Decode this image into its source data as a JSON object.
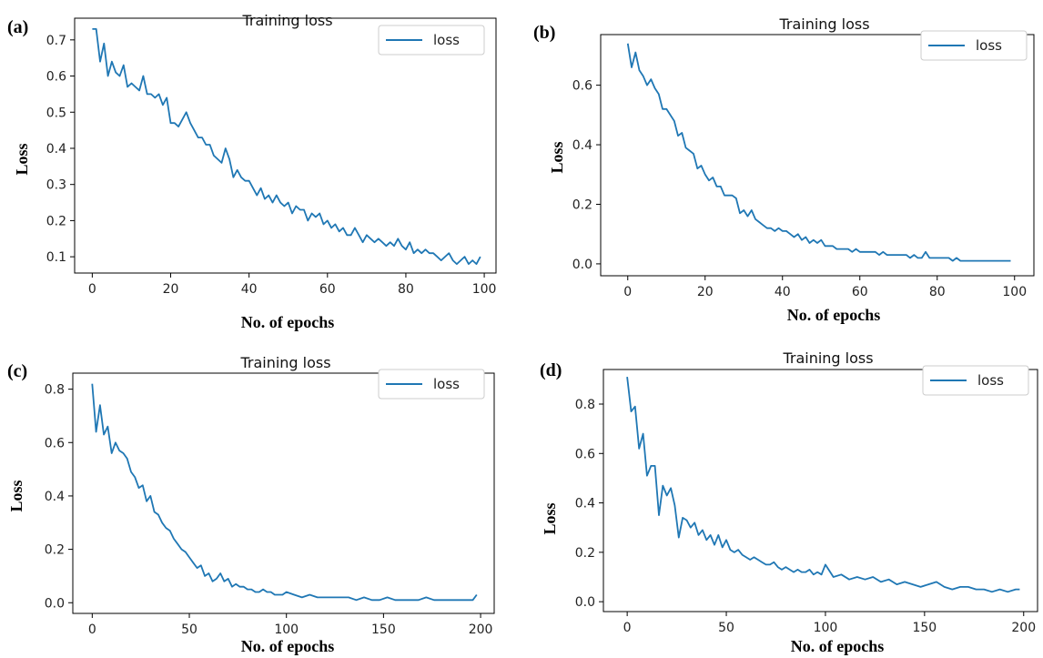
{
  "chart_data": [
    {
      "panel": "(a)",
      "type": "line",
      "title": "Training loss",
      "xlabel": "No. of epochs",
      "ylabel": "Loss",
      "xlim": [
        -4.5,
        103
      ],
      "ylim": [
        0.055,
        0.76
      ],
      "xticks": [
        0,
        20,
        40,
        60,
        80,
        100
      ],
      "yticks": [
        0.1,
        0.2,
        0.3,
        0.4,
        0.5,
        0.6,
        0.7
      ],
      "ytick_labels": [
        "0.1",
        "0.2",
        "0.3",
        "0.4",
        "0.5",
        "0.6",
        "0.7"
      ],
      "legend": "top-right",
      "series": [
        {
          "name": "loss",
          "color": "#1f77b4",
          "x": [
            0,
            1,
            2,
            3,
            4,
            5,
            6,
            7,
            8,
            9,
            10,
            11,
            12,
            13,
            14,
            15,
            16,
            17,
            18,
            19,
            20,
            21,
            22,
            23,
            24,
            25,
            26,
            27,
            28,
            29,
            30,
            31,
            32,
            33,
            34,
            35,
            36,
            37,
            38,
            39,
            40,
            41,
            42,
            43,
            44,
            45,
            46,
            47,
            48,
            49,
            50,
            51,
            52,
            53,
            54,
            55,
            56,
            57,
            58,
            59,
            60,
            61,
            62,
            63,
            64,
            65,
            66,
            67,
            68,
            69,
            70,
            71,
            72,
            73,
            74,
            75,
            76,
            77,
            78,
            79,
            80,
            81,
            82,
            83,
            84,
            85,
            86,
            87,
            88,
            89,
            90,
            91,
            92,
            93,
            94,
            95,
            96,
            97,
            98,
            99
          ],
          "y": [
            0.73,
            0.73,
            0.64,
            0.69,
            0.6,
            0.64,
            0.61,
            0.6,
            0.63,
            0.57,
            0.58,
            0.57,
            0.56,
            0.6,
            0.55,
            0.55,
            0.54,
            0.55,
            0.52,
            0.54,
            0.47,
            0.47,
            0.46,
            0.48,
            0.5,
            0.47,
            0.45,
            0.43,
            0.43,
            0.41,
            0.41,
            0.38,
            0.37,
            0.36,
            0.4,
            0.37,
            0.32,
            0.34,
            0.32,
            0.31,
            0.31,
            0.29,
            0.27,
            0.29,
            0.26,
            0.27,
            0.25,
            0.27,
            0.25,
            0.24,
            0.25,
            0.22,
            0.24,
            0.23,
            0.23,
            0.2,
            0.22,
            0.21,
            0.22,
            0.19,
            0.2,
            0.18,
            0.19,
            0.17,
            0.18,
            0.16,
            0.16,
            0.18,
            0.16,
            0.14,
            0.16,
            0.15,
            0.14,
            0.15,
            0.14,
            0.13,
            0.14,
            0.13,
            0.15,
            0.13,
            0.12,
            0.14,
            0.11,
            0.12,
            0.11,
            0.12,
            0.11,
            0.11,
            0.1,
            0.09,
            0.1,
            0.11,
            0.09,
            0.08,
            0.09,
            0.1,
            0.08,
            0.09,
            0.08,
            0.1
          ]
        }
      ]
    },
    {
      "panel": "(b)",
      "type": "line",
      "title": "Training loss",
      "xlabel": "No. of epochs",
      "ylabel": "Loss",
      "xlim": [
        -7,
        105
      ],
      "ylim": [
        -0.04,
        0.77
      ],
      "xticks": [
        0,
        20,
        40,
        60,
        80,
        100
      ],
      "yticks": [
        0.0,
        0.2,
        0.4,
        0.6
      ],
      "ytick_labels": [
        "0.0",
        "0.2",
        "0.4",
        "0.6"
      ],
      "legend": "top-right",
      "series": [
        {
          "name": "loss",
          "color": "#1f77b4",
          "x": [
            0,
            1,
            2,
            3,
            4,
            5,
            6,
            7,
            8,
            9,
            10,
            11,
            12,
            13,
            14,
            15,
            16,
            17,
            18,
            19,
            20,
            21,
            22,
            23,
            24,
            25,
            26,
            27,
            28,
            29,
            30,
            31,
            32,
            33,
            34,
            35,
            36,
            37,
            38,
            39,
            40,
            41,
            42,
            43,
            44,
            45,
            46,
            47,
            48,
            49,
            50,
            51,
            52,
            53,
            54,
            55,
            56,
            57,
            58,
            59,
            60,
            61,
            62,
            63,
            64,
            65,
            66,
            67,
            68,
            69,
            70,
            71,
            72,
            73,
            74,
            75,
            76,
            77,
            78,
            79,
            80,
            81,
            82,
            83,
            84,
            85,
            86,
            87,
            88,
            89,
            90,
            91,
            92,
            93,
            94,
            95,
            96,
            97,
            98,
            99
          ],
          "y": [
            0.74,
            0.66,
            0.71,
            0.65,
            0.63,
            0.6,
            0.62,
            0.59,
            0.57,
            0.52,
            0.52,
            0.5,
            0.48,
            0.43,
            0.44,
            0.39,
            0.38,
            0.37,
            0.32,
            0.33,
            0.3,
            0.28,
            0.29,
            0.26,
            0.26,
            0.23,
            0.23,
            0.23,
            0.22,
            0.17,
            0.18,
            0.16,
            0.18,
            0.15,
            0.14,
            0.13,
            0.12,
            0.12,
            0.11,
            0.12,
            0.11,
            0.11,
            0.1,
            0.09,
            0.1,
            0.08,
            0.09,
            0.07,
            0.08,
            0.07,
            0.08,
            0.06,
            0.06,
            0.06,
            0.05,
            0.05,
            0.05,
            0.05,
            0.04,
            0.05,
            0.04,
            0.04,
            0.04,
            0.04,
            0.04,
            0.03,
            0.04,
            0.03,
            0.03,
            0.03,
            0.03,
            0.03,
            0.03,
            0.02,
            0.03,
            0.02,
            0.02,
            0.04,
            0.02,
            0.02,
            0.02,
            0.02,
            0.02,
            0.02,
            0.01,
            0.02,
            0.01,
            0.01,
            0.01,
            0.01,
            0.01,
            0.01,
            0.01,
            0.01,
            0.01,
            0.01,
            0.01,
            0.01,
            0.01,
            0.01
          ]
        }
      ]
    },
    {
      "panel": "(c)",
      "type": "line",
      "title": "Training loss",
      "xlabel": "No. of epochs",
      "ylabel": "Loss",
      "xlim": [
        -10,
        207
      ],
      "ylim": [
        -0.04,
        0.86
      ],
      "xticks": [
        0,
        50,
        100,
        150,
        200
      ],
      "yticks": [
        0.0,
        0.2,
        0.4,
        0.6,
        0.8
      ],
      "ytick_labels": [
        "0.0",
        "0.2",
        "0.4",
        "0.6",
        "0.8"
      ],
      "legend": "top-right",
      "series": [
        {
          "name": "loss",
          "color": "#1f77b4",
          "x": [
            0,
            2,
            4,
            6,
            8,
            10,
            12,
            14,
            16,
            18,
            20,
            22,
            24,
            26,
            28,
            30,
            32,
            34,
            36,
            38,
            40,
            42,
            44,
            46,
            48,
            50,
            52,
            54,
            56,
            58,
            60,
            62,
            64,
            66,
            68,
            70,
            72,
            74,
            76,
            78,
            80,
            82,
            84,
            86,
            88,
            90,
            92,
            94,
            96,
            98,
            100,
            104,
            108,
            112,
            116,
            120,
            124,
            128,
            132,
            136,
            140,
            144,
            148,
            152,
            156,
            160,
            164,
            168,
            172,
            176,
            180,
            184,
            188,
            192,
            196,
            198
          ],
          "y": [
            0.82,
            0.64,
            0.74,
            0.63,
            0.66,
            0.56,
            0.6,
            0.57,
            0.56,
            0.54,
            0.49,
            0.47,
            0.43,
            0.44,
            0.38,
            0.4,
            0.34,
            0.33,
            0.3,
            0.28,
            0.27,
            0.24,
            0.22,
            0.2,
            0.19,
            0.17,
            0.15,
            0.13,
            0.14,
            0.1,
            0.11,
            0.08,
            0.09,
            0.11,
            0.08,
            0.09,
            0.06,
            0.07,
            0.06,
            0.06,
            0.05,
            0.05,
            0.04,
            0.04,
            0.05,
            0.04,
            0.04,
            0.03,
            0.03,
            0.03,
            0.04,
            0.03,
            0.02,
            0.03,
            0.02,
            0.02,
            0.02,
            0.02,
            0.02,
            0.01,
            0.02,
            0.01,
            0.01,
            0.02,
            0.01,
            0.01,
            0.01,
            0.01,
            0.02,
            0.01,
            0.01,
            0.01,
            0.01,
            0.01,
            0.01,
            0.03
          ]
        }
      ]
    },
    {
      "panel": "(d)",
      "type": "line",
      "title": "Training loss",
      "xlabel": "No. of epochs",
      "ylabel": "Loss",
      "xlim": [
        -12,
        207
      ],
      "ylim": [
        -0.04,
        0.94
      ],
      "xticks": [
        0,
        50,
        100,
        150,
        200
      ],
      "yticks": [
        0.0,
        0.2,
        0.4,
        0.6,
        0.8
      ],
      "ytick_labels": [
        "0.0",
        "0.2",
        "0.4",
        "0.6",
        "0.8"
      ],
      "legend": "top-right",
      "series": [
        {
          "name": "loss",
          "color": "#1f77b4",
          "x": [
            0,
            2,
            4,
            6,
            8,
            10,
            12,
            14,
            16,
            18,
            20,
            22,
            24,
            26,
            28,
            30,
            32,
            34,
            36,
            38,
            40,
            42,
            44,
            46,
            48,
            50,
            52,
            54,
            56,
            58,
            60,
            62,
            64,
            66,
            68,
            70,
            72,
            74,
            76,
            78,
            80,
            82,
            84,
            86,
            88,
            90,
            92,
            94,
            96,
            98,
            100,
            104,
            108,
            112,
            116,
            120,
            124,
            128,
            132,
            136,
            140,
            144,
            148,
            152,
            156,
            160,
            164,
            168,
            172,
            176,
            180,
            184,
            188,
            192,
            196,
            198
          ],
          "y": [
            0.91,
            0.77,
            0.79,
            0.62,
            0.68,
            0.51,
            0.55,
            0.55,
            0.35,
            0.47,
            0.43,
            0.46,
            0.39,
            0.26,
            0.34,
            0.33,
            0.3,
            0.32,
            0.27,
            0.29,
            0.25,
            0.27,
            0.23,
            0.27,
            0.22,
            0.25,
            0.21,
            0.2,
            0.21,
            0.19,
            0.18,
            0.17,
            0.18,
            0.17,
            0.16,
            0.15,
            0.15,
            0.16,
            0.14,
            0.13,
            0.14,
            0.13,
            0.12,
            0.13,
            0.12,
            0.12,
            0.13,
            0.11,
            0.12,
            0.11,
            0.15,
            0.1,
            0.11,
            0.09,
            0.1,
            0.09,
            0.1,
            0.08,
            0.09,
            0.07,
            0.08,
            0.07,
            0.06,
            0.07,
            0.08,
            0.06,
            0.05,
            0.06,
            0.06,
            0.05,
            0.05,
            0.04,
            0.05,
            0.04,
            0.05,
            0.05
          ]
        }
      ]
    }
  ]
}
